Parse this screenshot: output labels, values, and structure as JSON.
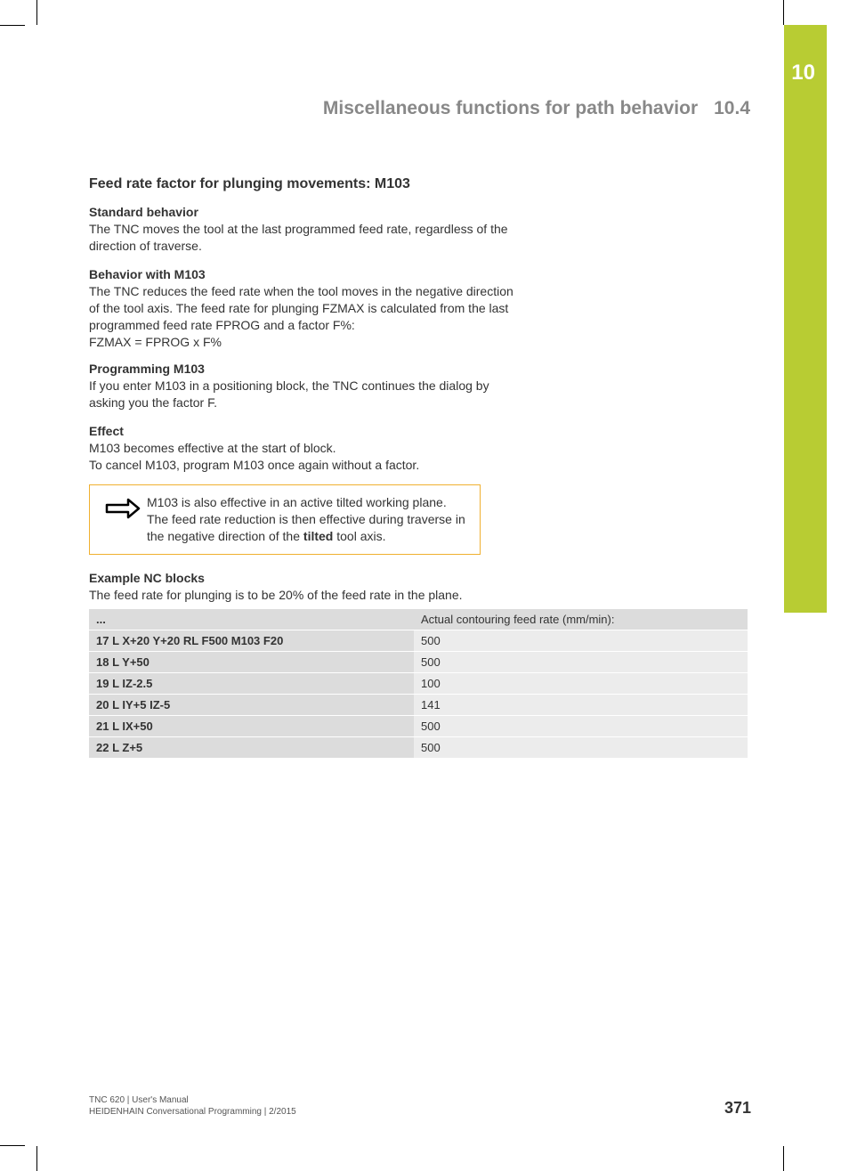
{
  "chapter": {
    "number": "10",
    "tab_color": "#b8cc33"
  },
  "header": {
    "title": "Miscellaneous functions for path behavior",
    "section": "10.4"
  },
  "section": {
    "title": "Feed rate factor for plunging movements: M103",
    "standard_behavior": {
      "heading": "Standard behavior",
      "text": "The TNC moves the tool at the last programmed feed rate, regardless of the direction of traverse."
    },
    "behavior_m103": {
      "heading": "Behavior with M103",
      "text": "The TNC reduces the feed rate when the tool moves in the negative direction of the tool axis. The feed rate for plunging FZMAX is calculated from the last programmed feed rate FPROG and a factor F%:",
      "formula": "FZMAX = FPROG x F%"
    },
    "programming": {
      "heading": "Programming M103",
      "text": "If you enter M103 in a positioning block, the TNC continues the dialog by asking you the factor F."
    },
    "effect": {
      "heading": "Effect",
      "line1": "M103 becomes effective at the start of block.",
      "line2": "To cancel M103, program M103 once again without a factor."
    },
    "note": {
      "pre": "M103 is also effective in an active tilted working plane. The feed rate reduction is then effective during traverse in the negative direction of the ",
      "bold": "tilted",
      "post": " tool axis."
    },
    "example": {
      "heading": "Example NC blocks",
      "intro": "The feed rate for plunging is to be 20% of the feed rate in the plane.",
      "header_left": "...",
      "header_right": "Actual contouring feed rate (mm/min):",
      "rows": [
        {
          "code": "17 L X+20 Y+20 RL F500 M103 F20",
          "rate": "500"
        },
        {
          "code": "18 L Y+50",
          "rate": "500"
        },
        {
          "code": "19 L IZ-2.5",
          "rate": "100"
        },
        {
          "code": "20 L IY+5 IZ-5",
          "rate": "141"
        },
        {
          "code": "21 L IX+50",
          "rate": "500"
        },
        {
          "code": "22 L Z+5",
          "rate": "500"
        }
      ]
    }
  },
  "footer": {
    "line1": "TNC 620 | User's Manual",
    "line2": "HEIDENHAIN Conversational Programming | 2/2015",
    "page": "371"
  },
  "colors": {
    "text": "#333333",
    "muted": "#888888",
    "note_border": "#f0b030",
    "table_head_bg": "#dcdcdc",
    "table_cell_bg": "#ececec"
  }
}
